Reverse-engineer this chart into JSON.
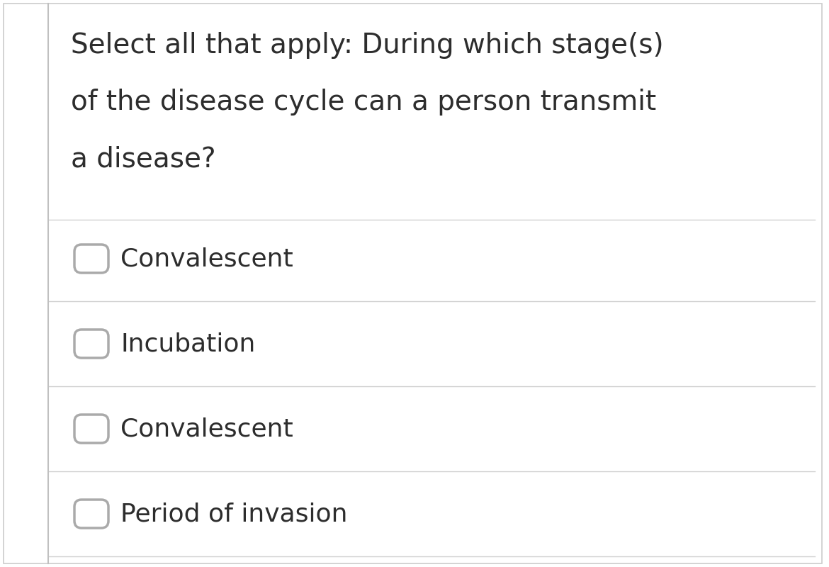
{
  "background_color": "#ffffff",
  "border_color": "#cccccc",
  "left_border_color": "#c0c0c0",
  "question_text_lines": [
    "Select all that apply: During which stage(s)",
    "of the disease cycle can a person transmit",
    "a disease?"
  ],
  "options": [
    "Convalescent",
    "Incubation",
    "Convalescent",
    "Period of invasion"
  ],
  "text_color": "#2d2d2d",
  "line_color": "#d0d0d0",
  "checkbox_color": "#aaaaaa",
  "question_fontsize": 28,
  "option_fontsize": 26,
  "fig_width": 11.7,
  "fig_height": 8.0,
  "dpi": 100
}
